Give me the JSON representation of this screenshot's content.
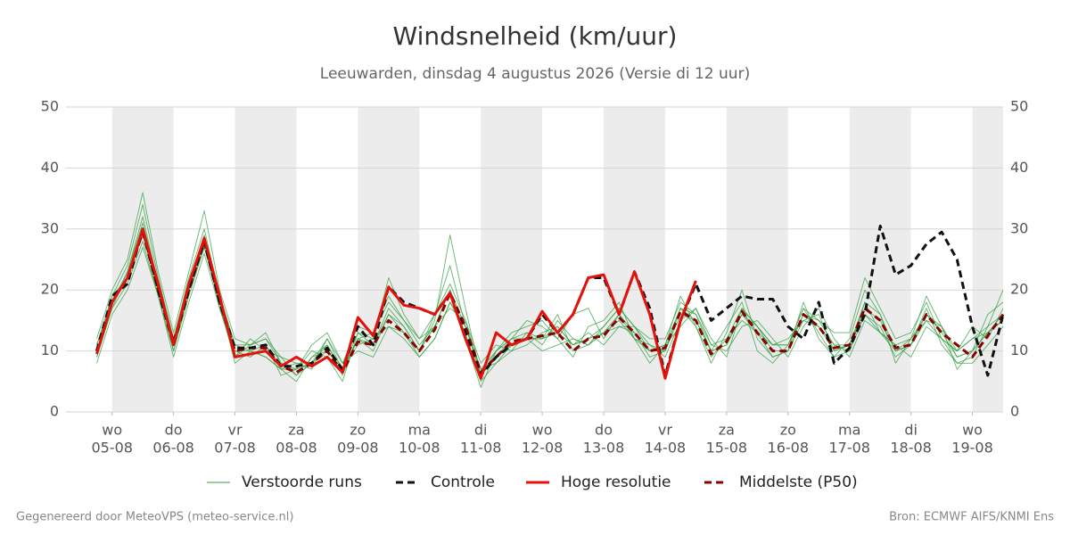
{
  "chart_data": {
    "type": "line",
    "title": "Windsnelheid (km/uur)",
    "subtitle": "Leeuwarden, dinsdag  4 augustus 2026 (Versie di 12 uur)",
    "footer": {
      "left": "Gegenereerd door MeteoVPS (meteo-service.nl)",
      "right": "Bron: ECMWF AIFS/KNMI Ens"
    },
    "xlim": [
      -0.75,
      14.5
    ],
    "xticks": [
      {
        "value": 0,
        "weekday": "wo",
        "date": "05-08"
      },
      {
        "value": 1,
        "weekday": "do",
        "date": "06-08"
      },
      {
        "value": 2,
        "weekday": "vr",
        "date": "07-08"
      },
      {
        "value": 3,
        "weekday": "za",
        "date": "08-08"
      },
      {
        "value": 4,
        "weekday": "zo",
        "date": "09-08"
      },
      {
        "value": 5,
        "weekday": "ma",
        "date": "10-08"
      },
      {
        "value": 6,
        "weekday": "di",
        "date": "11-08"
      },
      {
        "value": 7,
        "weekday": "wo",
        "date": "12-08"
      },
      {
        "value": 8,
        "weekday": "do",
        "date": "13-08"
      },
      {
        "value": 9,
        "weekday": "vr",
        "date": "14-08"
      },
      {
        "value": 10,
        "weekday": "za",
        "date": "15-08"
      },
      {
        "value": 11,
        "weekday": "zo",
        "date": "16-08"
      },
      {
        "value": 12,
        "weekday": "ma",
        "date": "17-08"
      },
      {
        "value": 13,
        "weekday": "di",
        "date": "18-08"
      },
      {
        "value": 14,
        "weekday": "wo",
        "date": "19-08"
      }
    ],
    "ylim": [
      0,
      50
    ],
    "yticks": [
      0,
      10,
      20,
      30,
      40,
      50
    ],
    "y2lim": [
      0,
      50
    ],
    "y2ticks": [
      0,
      10,
      20,
      30,
      40,
      50
    ],
    "grid": true,
    "shade_alternate_days": true,
    "x": [
      -0.25,
      0,
      0.25,
      0.5,
      0.75,
      1,
      1.25,
      1.5,
      1.75,
      2,
      2.25,
      2.5,
      2.75,
      3,
      3.25,
      3.5,
      3.75,
      4,
      4.25,
      4.5,
      4.75,
      5,
      5.25,
      5.5,
      5.75,
      6,
      6.25,
      6.5,
      6.75,
      7,
      7.25,
      7.5,
      7.75,
      8,
      8.25,
      8.5,
      8.75,
      9,
      9.25,
      9.5,
      9.75,
      10,
      10.25,
      10.5,
      10.75,
      11,
      11.25,
      11.5,
      11.75,
      12,
      12.25,
      12.5,
      12.75,
      13,
      13.25,
      13.5,
      13.75,
      14,
      14.25,
      14.5
    ],
    "series": [
      {
        "name": "Verstoorde runs",
        "color": "#2e9e3e",
        "members": [
          [
            9,
            17,
            23,
            31,
            21,
            10,
            19,
            27,
            18,
            9,
            11,
            12,
            8,
            6,
            9,
            11,
            7,
            12,
            13,
            18,
            15,
            12,
            16,
            24,
            14,
            7,
            10,
            13,
            14,
            15,
            12,
            9,
            14,
            15,
            18,
            12,
            8,
            11,
            19,
            14,
            8,
            13,
            20,
            12,
            9,
            10,
            18,
            12,
            9,
            12,
            20,
            16,
            8,
            12,
            19,
            14,
            7,
            10,
            16,
            18
          ],
          [
            11,
            19,
            24,
            34,
            22,
            12,
            22,
            30,
            19,
            11,
            10,
            9,
            7,
            8,
            7,
            12,
            8,
            10,
            9,
            14,
            12,
            9,
            12,
            18,
            13,
            5,
            8,
            10,
            11,
            13,
            14,
            11,
            13,
            11,
            14,
            14,
            11,
            9,
            15,
            17,
            11,
            10,
            14,
            15,
            12,
            9,
            14,
            17,
            12,
            9,
            15,
            13,
            11,
            9,
            14,
            12,
            10,
            12,
            13,
            15
          ],
          [
            8,
            16,
            20,
            27,
            19,
            9,
            18,
            26,
            17,
            10,
            9,
            11,
            6,
            7,
            10,
            9,
            5,
            13,
            12,
            22,
            16,
            12,
            14,
            17,
            15,
            8,
            11,
            10,
            13,
            11,
            15,
            12,
            11,
            14,
            17,
            14,
            12,
            12,
            18,
            16,
            10,
            14,
            18,
            10,
            8,
            11,
            17,
            15,
            13,
            13,
            22,
            17,
            12,
            13,
            18,
            12,
            8,
            8,
            11,
            14
          ],
          [
            10,
            18,
            22,
            29,
            20,
            11,
            21,
            28,
            17,
            9,
            12,
            10,
            9,
            6,
            8,
            11,
            6,
            12,
            10,
            16,
            14,
            10,
            15,
            29,
            17,
            6,
            9,
            12,
            12,
            12,
            16,
            10,
            11,
            13,
            14,
            13,
            9,
            10,
            17,
            14,
            9,
            12,
            15,
            13,
            11,
            11,
            17,
            13,
            9,
            10,
            18,
            13,
            11,
            12,
            15,
            12,
            10,
            14,
            12,
            17
          ],
          [
            12,
            20,
            25,
            36,
            23,
            13,
            23,
            33,
            20,
            12,
            11,
            13,
            8,
            7,
            11,
            13,
            8,
            14,
            13,
            19,
            15,
            11,
            14,
            20,
            12,
            4,
            10,
            12,
            15,
            14,
            12,
            16,
            17,
            12,
            16,
            12,
            10,
            11,
            14,
            17,
            12,
            9,
            17,
            14,
            11,
            12,
            15,
            16,
            10,
            11,
            16,
            14,
            9,
            11,
            17,
            11,
            8,
            9,
            14,
            20
          ],
          [
            9,
            17,
            21,
            28,
            19,
            10,
            20,
            27,
            18,
            8,
            10,
            9,
            7,
            5,
            9,
            10,
            7,
            11,
            12,
            14,
            13,
            9,
            12,
            18,
            14,
            7,
            8,
            11,
            12,
            10,
            11,
            12,
            11,
            13,
            15,
            12,
            11,
            10,
            16,
            15,
            10,
            11,
            16,
            13,
            9,
            10,
            15,
            14,
            11,
            10,
            16,
            13,
            10,
            11,
            15,
            14,
            9,
            10,
            13,
            15
          ],
          [
            11,
            18,
            23,
            32,
            21,
            12,
            21,
            29,
            19,
            11,
            11,
            12,
            9,
            8,
            8,
            12,
            7,
            13,
            11,
            17,
            14,
            10,
            16,
            21,
            15,
            6,
            10,
            12,
            13,
            12,
            14,
            11,
            12,
            14,
            17,
            14,
            10,
            11,
            17,
            16,
            11,
            12,
            17,
            14,
            11,
            11,
            16,
            15,
            11,
            11,
            18,
            16,
            10,
            12,
            16,
            14,
            10,
            12,
            14,
            16
          ],
          [
            10,
            19,
            22,
            30,
            20,
            11,
            20,
            28,
            18,
            10,
            10,
            11,
            7,
            7,
            8,
            10,
            7,
            12,
            11,
            16,
            13,
            10,
            14,
            20,
            14,
            6,
            9,
            11,
            12,
            12,
            13,
            11,
            12,
            13,
            16,
            13,
            10,
            10,
            17,
            15,
            10,
            11,
            16,
            14,
            10,
            10,
            16,
            14,
            10,
            11,
            17,
            15,
            10,
            11,
            16,
            13,
            9,
            10,
            13,
            16
          ]
        ]
      },
      {
        "name": "Controle",
        "color": "#111111",
        "dashed": true,
        "values": [
          10,
          19,
          21,
          30,
          20,
          11,
          20,
          28,
          18,
          10.5,
          10.5,
          11,
          7.5,
          7.5,
          8,
          10.5,
          7,
          14,
          11,
          20.5,
          18,
          17,
          16,
          19.5,
          13,
          6,
          9,
          11,
          12,
          16,
          13,
          16,
          22,
          22,
          16,
          23,
          17,
          6,
          15,
          21,
          15,
          17,
          19,
          18.5,
          18.5,
          14,
          12,
          18,
          8,
          10.5,
          16,
          30.5,
          22.5,
          24,
          27.5,
          29.5,
          25,
          14,
          6,
          16
        ]
      },
      {
        "name": "Hoge resolutie",
        "color": "#e3120b",
        "values": [
          9.5,
          18,
          22,
          30,
          21,
          11,
          21,
          28.5,
          19,
          9,
          9.5,
          10,
          7.5,
          9,
          7.5,
          9,
          6.5,
          15.5,
          12.5,
          20.5,
          17.5,
          17,
          16,
          19.5,
          12,
          5.5,
          13,
          11,
          12,
          16.5,
          13,
          16,
          22,
          22.5,
          16,
          23,
          16,
          5.5,
          15,
          21.5,
          null,
          null,
          null,
          null,
          null,
          null,
          null,
          null,
          null,
          null,
          null,
          null,
          null,
          null,
          null,
          null,
          null,
          null,
          null,
          null
        ]
      },
      {
        "name": "Middelste (P50)",
        "color": "#8b0000",
        "dashed": true,
        "values": [
          10,
          18,
          22,
          29.5,
          20,
          11.5,
          20,
          28,
          18,
          10,
          10.5,
          10.5,
          7.5,
          6.5,
          8,
          10,
          6.5,
          11.5,
          11,
          15,
          13,
          10,
          13.5,
          19.5,
          14,
          6.5,
          9,
          11.5,
          12,
          12.5,
          13,
          10,
          12,
          12.5,
          15.5,
          13,
          10,
          10.5,
          16.5,
          15,
          9.5,
          11.5,
          16.5,
          13,
          10,
          10,
          16,
          14,
          10.5,
          11,
          17,
          15,
          10.5,
          11,
          16,
          13,
          11,
          9,
          12.5,
          16
        ]
      }
    ]
  }
}
